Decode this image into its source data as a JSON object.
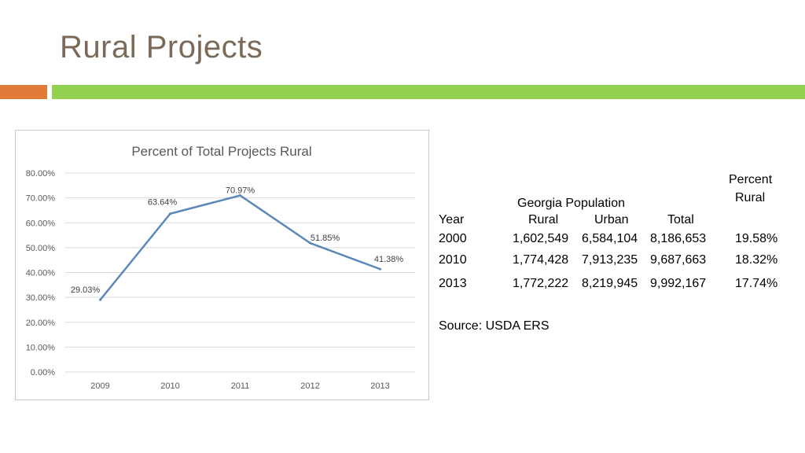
{
  "slide": {
    "title": "Rural Projects",
    "accent_color": "#e07b39",
    "bar_color": "#92d050"
  },
  "chart_data": {
    "type": "line",
    "title": "Percent of Total Projects Rural",
    "categories": [
      "2009",
      "2010",
      "2011",
      "2012",
      "2013"
    ],
    "values": [
      29.03,
      63.64,
      70.97,
      51.85,
      41.38
    ],
    "data_labels": [
      "29.03%",
      "63.64%",
      "70.97%",
      "51.85%",
      "41.38%"
    ],
    "ylim": [
      0,
      80
    ],
    "yticks": [
      "0.00%",
      "10.00%",
      "20.00%",
      "30.00%",
      "40.00%",
      "50.00%",
      "60.00%",
      "70.00%",
      "80.00%"
    ],
    "grid": true,
    "line_color": "#5b87b9"
  },
  "table": {
    "header_group": "Georgia Population",
    "percent_header_line1": "Percent",
    "percent_header_line2": "Rural",
    "col_year": "Year",
    "col_rural": "Rural",
    "col_urban": "Urban",
    "col_total": "Total",
    "rows": [
      {
        "year": "2000",
        "rural": "1,602,549",
        "urban": "6,584,104",
        "total": "8,186,653",
        "pct": "19.58%"
      },
      {
        "year": "2010",
        "rural": "1,774,428",
        "urban": "7,913,235",
        "total": "9,687,663",
        "pct": "18.32%"
      },
      {
        "year": "2013",
        "rural": "1,772,222",
        "urban": "8,219,945",
        "total": "9,992,167",
        "pct": "17.74%"
      }
    ],
    "source": "Source: USDA ERS"
  }
}
